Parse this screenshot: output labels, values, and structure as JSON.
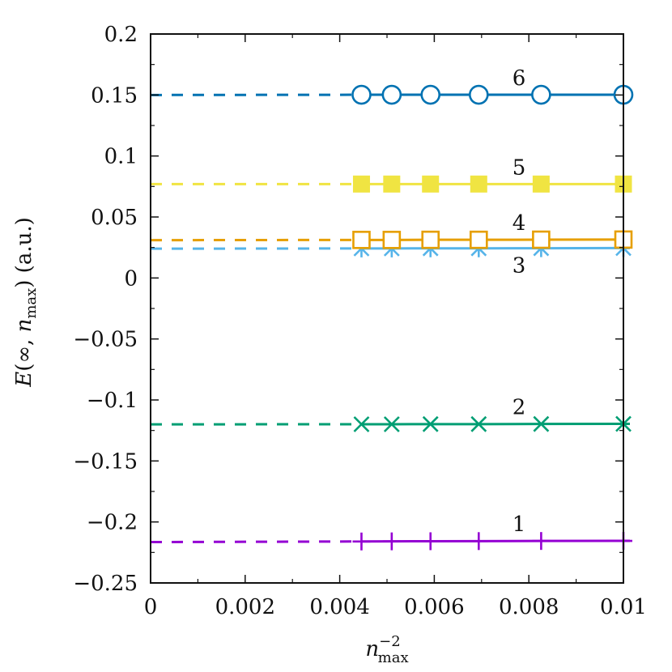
{
  "chart_data": {
    "type": "line",
    "xlabel": {
      "base": "n",
      "sub": "max",
      "sup": "−2"
    },
    "ylabel": {
      "prefix": "E",
      "args_pre": "(∞, ",
      "n": "n",
      "sub": "max",
      "args_post": ") (a.u.)"
    },
    "xlim": [
      0,
      0.01
    ],
    "ylim": [
      -0.25,
      0.2
    ],
    "xticks": [
      0,
      0.002,
      0.004,
      0.006,
      0.008,
      0.01
    ],
    "xtick_labels": [
      "0",
      "0.002",
      "0.004",
      "0.006",
      "0.008",
      "0.01"
    ],
    "yticks": [
      -0.25,
      -0.2,
      -0.15,
      -0.1,
      -0.05,
      0,
      0.05,
      0.1,
      0.15,
      0.2
    ],
    "ytick_labels": [
      "−0.25",
      "−0.2",
      "−0.15",
      "−0.1",
      "−0.05",
      "0",
      "0.05",
      "0.1",
      "0.15",
      "0.2"
    ],
    "grid": false,
    "x": [
      0.00446,
      0.0051,
      0.00592,
      0.00694,
      0.00826,
      0.01
    ],
    "series": [
      {
        "label": "1",
        "marker": "plus",
        "color": "#9400d3",
        "extrapolated": -0.2165,
        "values": [
          -0.216,
          -0.2159,
          -0.2158,
          -0.2157,
          -0.2156,
          -0.2155
        ]
      },
      {
        "label": "2",
        "marker": "cross",
        "color": "#009e73",
        "extrapolated": -0.12,
        "values": [
          -0.1199,
          -0.1199,
          -0.1198,
          -0.1198,
          -0.1197,
          -0.1196
        ]
      },
      {
        "label": "3",
        "marker": "star",
        "color": "#56b4e9",
        "extrapolated": 0.024,
        "values": [
          0.0242,
          0.0242,
          0.0243,
          0.0243,
          0.0244,
          0.0245
        ]
      },
      {
        "label": "4",
        "marker": "open-square",
        "color": "#e69f00",
        "extrapolated": 0.031,
        "values": [
          0.0312,
          0.0312,
          0.0313,
          0.0313,
          0.0314,
          0.0315
        ]
      },
      {
        "label": "5",
        "marker": "filled-square",
        "color": "#f0e442",
        "extrapolated": 0.077,
        "values": [
          0.077,
          0.077,
          0.077,
          0.077,
          0.077,
          0.077
        ]
      },
      {
        "label": "6",
        "marker": "open-circle",
        "color": "#0072b2",
        "extrapolated": 0.15,
        "values": [
          0.1502,
          0.1502,
          0.1502,
          0.1502,
          0.1502,
          0.1502
        ]
      }
    ]
  }
}
